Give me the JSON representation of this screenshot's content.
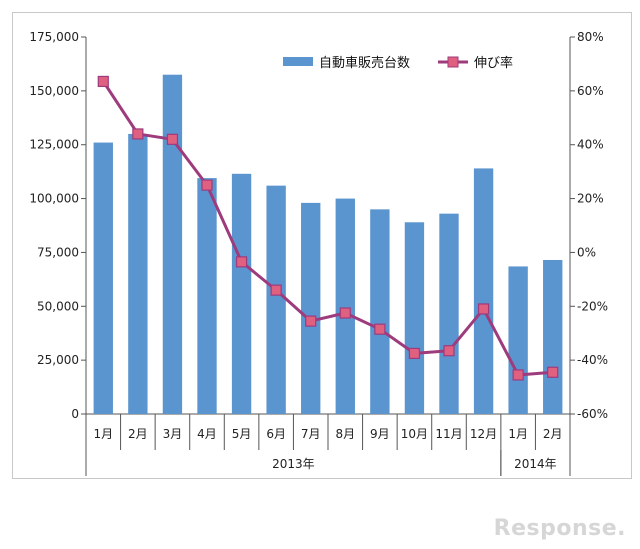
{
  "chart_data": {
    "type": "bar",
    "title": "",
    "categories": [
      "1月",
      "2月",
      "3月",
      "4月",
      "5月",
      "6月",
      "7月",
      "8月",
      "9月",
      "10月",
      "11月",
      "12月",
      "1月",
      "2月"
    ],
    "year_groups": [
      {
        "label": "2013年",
        "start": 0,
        "end": 11
      },
      {
        "label": "2014年",
        "start": 12,
        "end": 13
      }
    ],
    "series": [
      {
        "name": "自動車販売台数",
        "type": "bar",
        "axis": "left",
        "color": "#5b95cf",
        "values": [
          126000,
          130000,
          157500,
          109500,
          111500,
          106000,
          98000,
          100000,
          95000,
          89000,
          93000,
          114000,
          68500,
          71500
        ]
      },
      {
        "name": "伸び率",
        "type": "line",
        "axis": "right",
        "color": "#9e3b7d",
        "marker_color": "#e06080",
        "values": [
          63.5,
          44,
          42,
          25,
          -3.5,
          -14,
          -25.5,
          -22.5,
          -28.5,
          -37.5,
          -36.5,
          -21,
          -45.5,
          -44.5
        ]
      }
    ],
    "y_left": {
      "min": 0,
      "max": 175000,
      "ticks": [
        "0",
        "25,000",
        "50,000",
        "75,000",
        "100,000",
        "125,000",
        "150,000",
        "175,000"
      ]
    },
    "y_right": {
      "min": -60,
      "max": 80,
      "ticks": [
        "-60%",
        "-40%",
        "-20%",
        "0%",
        "20%",
        "40%",
        "60%",
        "80%"
      ]
    },
    "legend_position": "top-right",
    "grid": false
  },
  "watermark": "Response."
}
